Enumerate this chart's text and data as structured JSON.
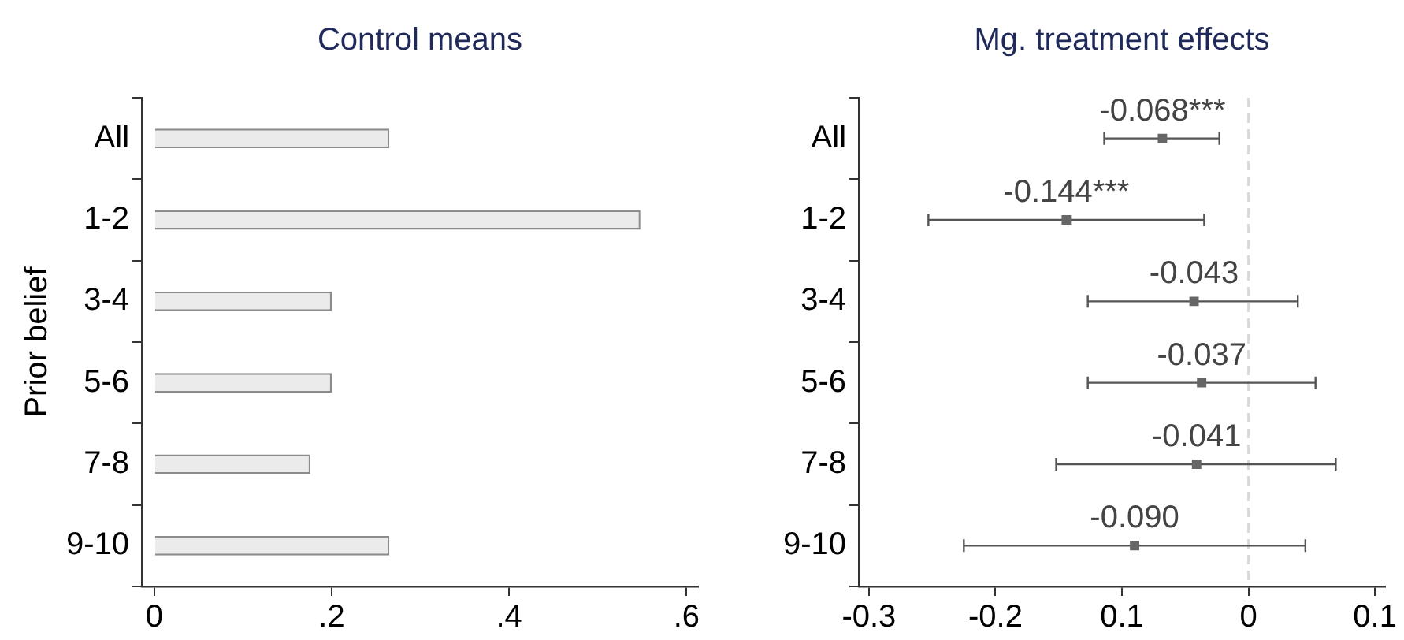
{
  "chart_data": [
    {
      "type": "bar",
      "orientation": "horizontal",
      "title": "Control means",
      "ylabel": "Prior belief",
      "categories": [
        "All",
        "1-2",
        "3-4",
        "5-6",
        "7-8",
        "9-10"
      ],
      "values": [
        0.265,
        0.548,
        0.2,
        0.2,
        0.176,
        0.265
      ],
      "color": "#ebebeb",
      "xlim": [
        -0.014,
        0.613
      ],
      "xticks": [
        {
          "value": 0,
          "label": "0"
        },
        {
          "value": 0.2,
          "label": ".2"
        },
        {
          "value": 0.4,
          "label": ".4"
        },
        {
          "value": 0.6,
          "label": ".6"
        }
      ]
    },
    {
      "type": "scatter",
      "orientation": "horizontal",
      "title": "Mg. treatment effects",
      "categories": [
        "All",
        "1-2",
        "3-4",
        "5-6",
        "7-8",
        "9-10"
      ],
      "values": [
        -0.068,
        -0.144,
        -0.043,
        -0.037,
        -0.041,
        -0.09
      ],
      "errors": [
        [
          -0.114,
          -0.023
        ],
        [
          -0.253,
          -0.035
        ],
        [
          -0.127,
          0.039
        ],
        [
          -0.127,
          0.053
        ],
        [
          -0.152,
          0.069
        ],
        [
          -0.225,
          0.045
        ]
      ],
      "value_labels": [
        "-0.068***",
        "-0.144***",
        "-0.043",
        "-0.037",
        "-0.041",
        "-0.090"
      ],
      "color": "#666666",
      "marker": "square",
      "xlim": [
        -0.308,
        0.108
      ],
      "xticks": [
        -0.3,
        -0.2,
        {
          "value": -0.1,
          "label": "0.1"
        },
        0,
        {
          "value": 0.1,
          "label": "0.1"
        }
      ],
      "ref_lines": [
        {
          "axis": "x",
          "value": 0,
          "color": "#d9d9d9",
          "line_style": "dashed"
        }
      ]
    }
  ]
}
